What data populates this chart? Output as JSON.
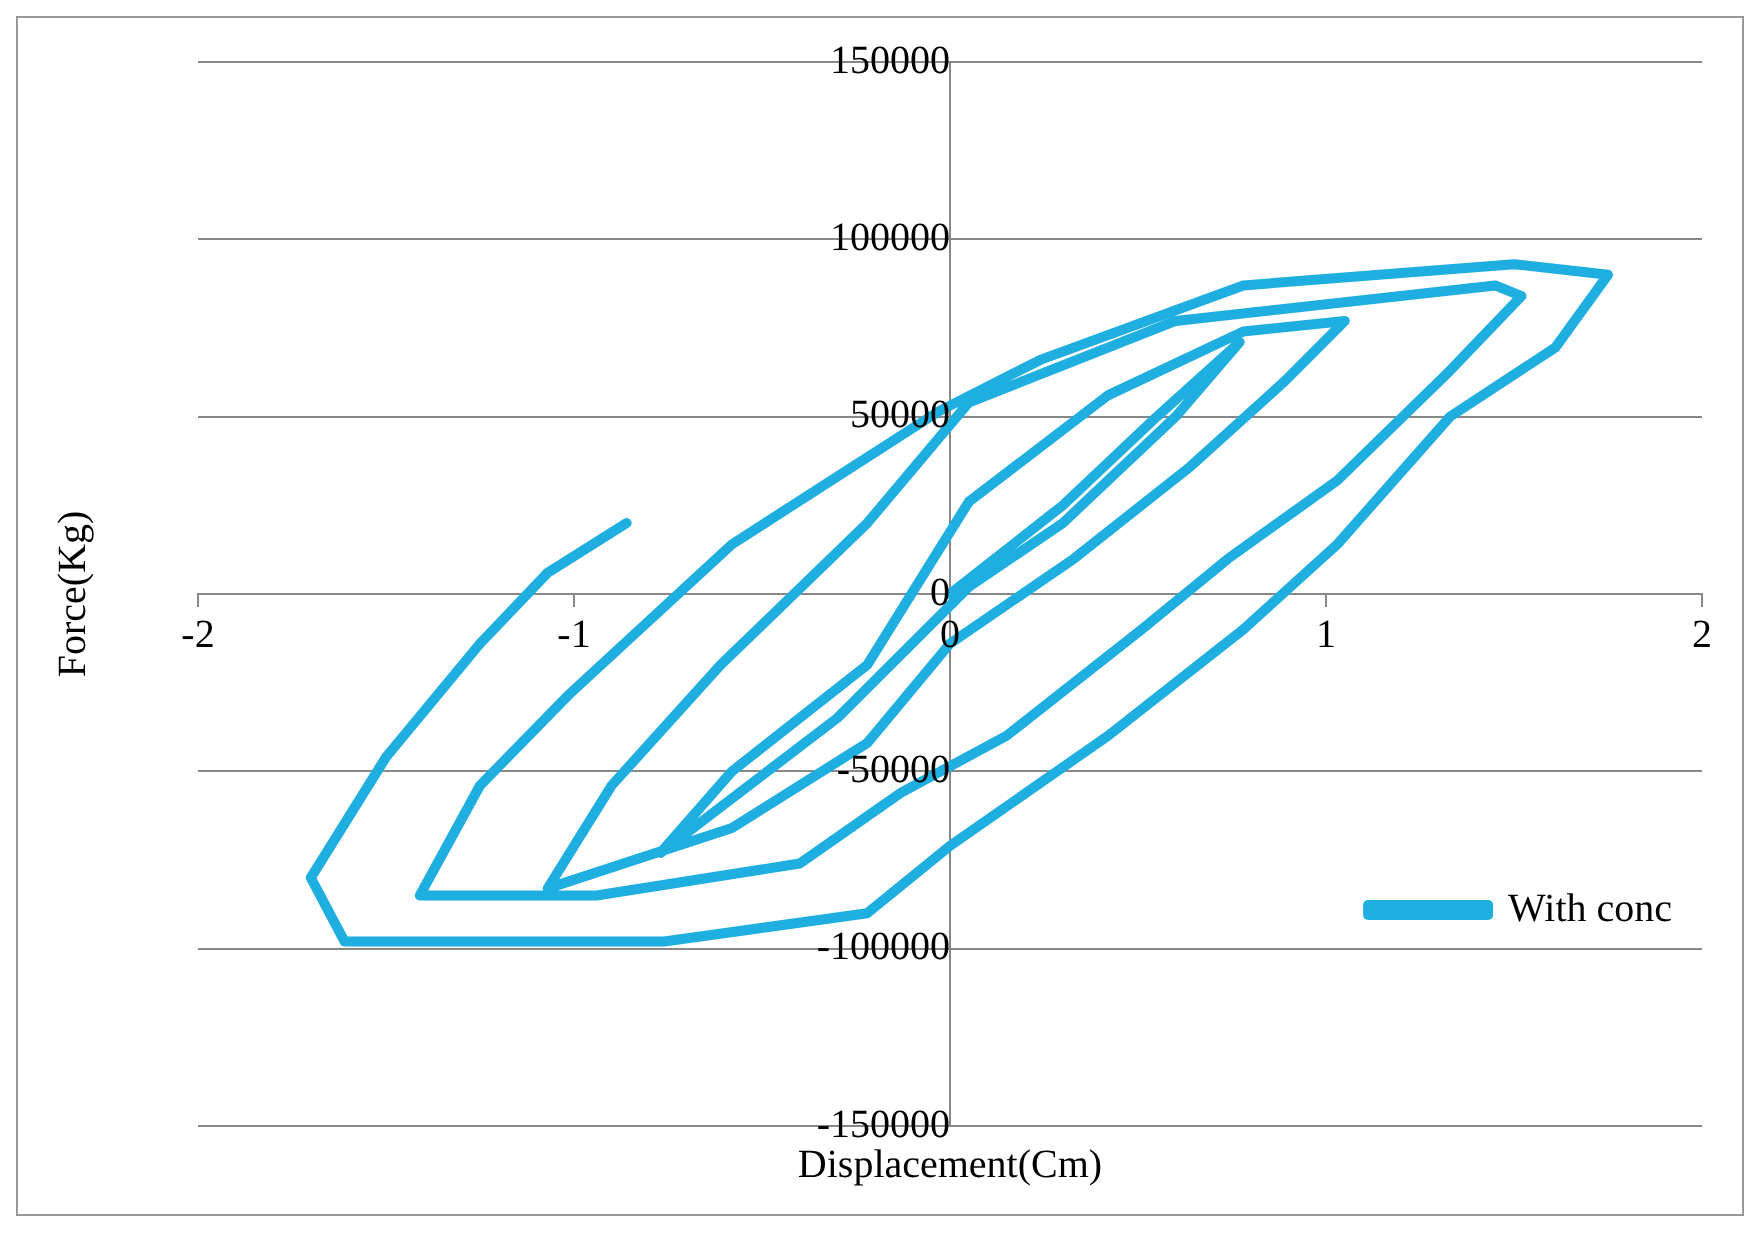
{
  "chart_data": {
    "type": "line",
    "xlabel": "Displacement(Cm)",
    "ylabel": "Force(Kg)",
    "xlim": [
      -2,
      2
    ],
    "xticks": [
      -2,
      -1,
      0,
      1,
      2
    ],
    "ylim": [
      -150000,
      150000
    ],
    "yticks": [
      -150000,
      -100000,
      -50000,
      0,
      50000,
      100000,
      150000
    ],
    "grid": "y",
    "legend": "bottom right",
    "marker": "none",
    "line_style": "solid",
    "series": [
      {
        "name": "With conc",
        "color": "#1eaee0",
        "x": [
          0,
          0.3,
          0.55,
          0.77,
          0.6,
          0.3,
          0.05,
          -0.3,
          -0.77,
          -0.58,
          -0.22,
          0.05,
          0.42,
          0.78,
          1.05,
          0.89,
          0.64,
          0.33,
          0,
          -0.22,
          -0.58,
          -1.07,
          -0.9,
          -0.61,
          -0.22,
          0.05,
          0.6,
          1.45,
          1.52,
          1.33,
          1.03,
          0.74,
          0.51,
          0.15,
          -0.13,
          -0.4,
          -0.94,
          -1.41,
          -1.25,
          -1.01,
          -0.58,
          -0.03,
          0.24,
          0.78,
          1.5,
          1.75,
          1.61,
          1.33,
          1.03,
          0.78,
          0.42,
          0,
          -0.22,
          -0.76,
          -1.61,
          -1.7,
          -1.5,
          -1.25,
          -1.07,
          -0.86
        ],
        "values": [
          0,
          25000,
          50000,
          71000,
          50000,
          20000,
          2000,
          -35000,
          -73000,
          -50000,
          -20000,
          26000,
          56000,
          74000,
          77000,
          60000,
          36000,
          10000,
          -14000,
          -42000,
          -66000,
          -83000,
          -54000,
          -20000,
          20000,
          54000,
          77000,
          87000,
          84000,
          63000,
          32000,
          10000,
          -10000,
          -40000,
          -56000,
          -76000,
          -85000,
          -85000,
          -54000,
          -28000,
          14000,
          51500,
          66000,
          87000,
          93000,
          90000,
          69500,
          50000,
          14000,
          -10000,
          -40000,
          -71000,
          -90000,
          -98000,
          -98000,
          -80000,
          -46000,
          -14000,
          6000,
          20000
        ]
      }
    ]
  }
}
